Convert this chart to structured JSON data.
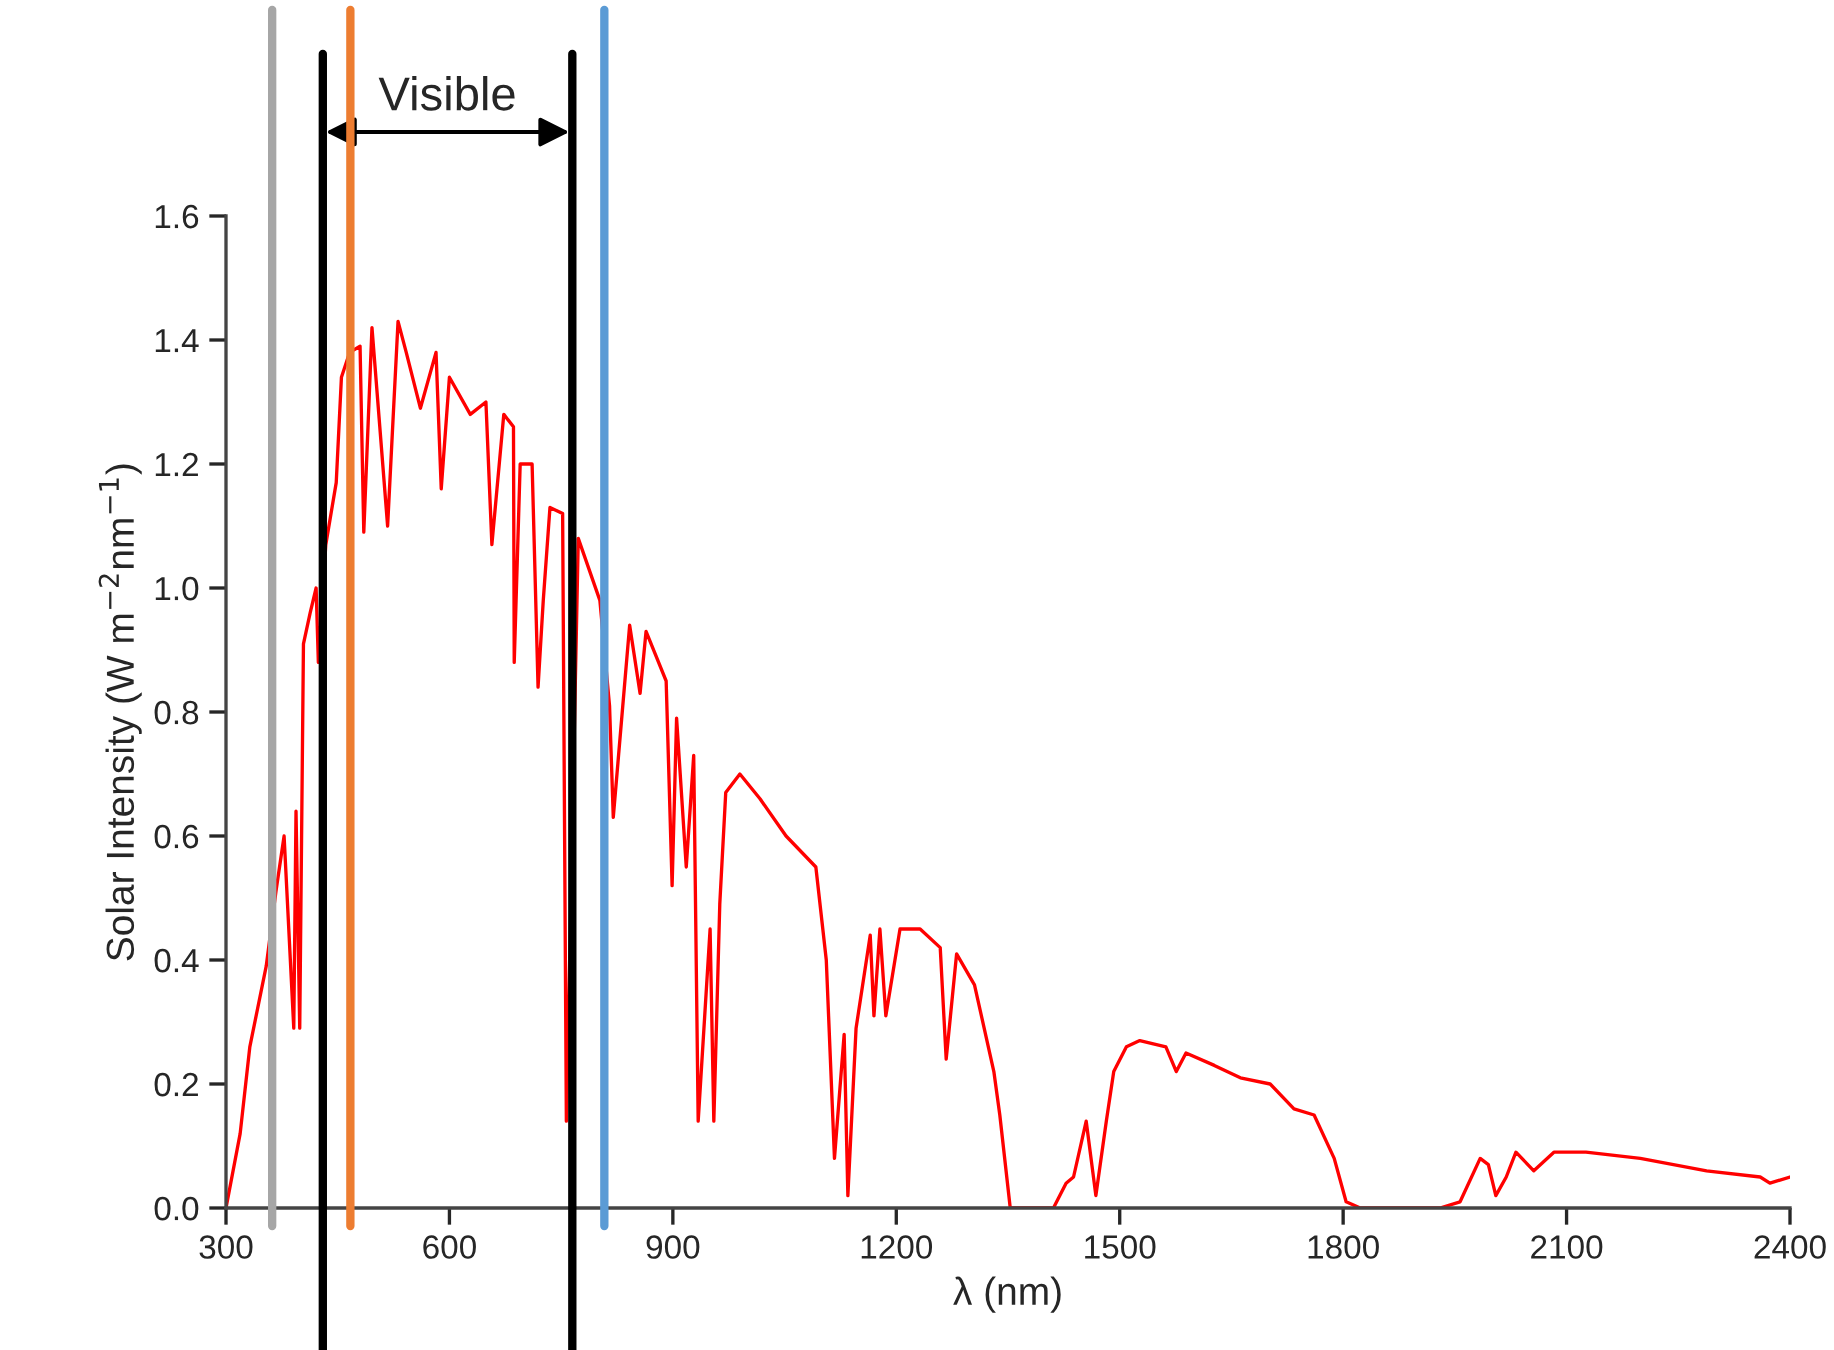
{
  "chart_data": {
    "type": "line",
    "xlabel": "λ (nm)",
    "ylabel": "Solar Intensity (W m$^{−2}$nm$^{−1}$)",
    "xlim": [
      300,
      2400
    ],
    "xticks": [
      300,
      600,
      900,
      1200,
      1500,
      1800,
      2100,
      2400
    ],
    "ylim": [
      0,
      1.6
    ],
    "yticks": [
      {
        "value": 0,
        "label": "0.0"
      },
      {
        "value": 0.2,
        "label": "0.2"
      },
      {
        "value": 0.4,
        "label": "0.4"
      },
      {
        "value": 0.6,
        "label": "0.6"
      },
      {
        "value": 0.8,
        "label": "0.8"
      },
      {
        "value": 1.0,
        "label": "1.0"
      },
      {
        "value": 1.2,
        "label": "1.2"
      },
      {
        "value": 1.4,
        "label": "1.4"
      },
      {
        "value": 1.6,
        "label": "1.6"
      }
    ],
    "grid": false,
    "marker": "none",
    "line_style": "solid",
    "series": [
      {
        "color": "#ff0000",
        "x": [
          300,
          319,
          332,
          354,
          367,
          378,
          391,
          394,
          399,
          404,
          413,
          421,
          424,
          434,
          448,
          455,
          466,
          480,
          485,
          496,
          517,
          531,
          542,
          561,
          582,
          589,
          600,
          628,
          649,
          657,
          673,
          686,
          687,
          695,
          711,
          719,
          726,
          735,
          752,
          757,
          773,
          802,
          815,
          820,
          842,
          856,
          864,
          891,
          899,
          905,
          918,
          928,
          934,
          950,
          955,
          963,
          971,
          990,
          1017,
          1052,
          1092,
          1106,
          1117,
          1130,
          1135,
          1146,
          1165,
          1170,
          1178,
          1186,
          1205,
          1232,
          1259,
          1267,
          1281,
          1305,
          1331,
          1339,
          1353,
          1411,
          1428,
          1438,
          1455,
          1468,
          1482,
          1492,
          1509,
          1527,
          1562,
          1576,
          1589,
          1627,
          1662,
          1702,
          1734,
          1761,
          1788,
          1804,
          1823,
          1930,
          1957,
          1984,
          1995,
          2005,
          2019,
          2032,
          2056,
          2083,
          2126,
          2199,
          2288,
          2360,
          2373,
          2400
        ],
        "values": [
          0.0,
          0.12,
          0.26,
          0.39,
          0.51,
          0.6,
          0.29,
          0.64,
          0.29,
          0.91,
          0.96,
          1.0,
          0.88,
          1.07,
          1.17,
          1.34,
          1.38,
          1.39,
          1.09,
          1.42,
          1.1,
          1.43,
          1.38,
          1.29,
          1.38,
          1.16,
          1.34,
          1.28,
          1.3,
          1.07,
          1.28,
          1.26,
          0.88,
          1.2,
          1.2,
          0.84,
          0.98,
          1.13,
          1.12,
          0.14,
          1.08,
          0.98,
          0.81,
          0.63,
          0.94,
          0.83,
          0.93,
          0.85,
          0.52,
          0.79,
          0.55,
          0.73,
          0.14,
          0.45,
          0.14,
          0.49,
          0.67,
          0.7,
          0.66,
          0.6,
          0.55,
          0.4,
          0.08,
          0.28,
          0.02,
          0.29,
          0.44,
          0.31,
          0.45,
          0.31,
          0.45,
          0.45,
          0.42,
          0.24,
          0.41,
          0.36,
          0.22,
          0.15,
          0.0,
          0.0,
          0.04,
          0.05,
          0.14,
          0.02,
          0.14,
          0.22,
          0.26,
          0.27,
          0.26,
          0.22,
          0.25,
          0.23,
          0.21,
          0.2,
          0.16,
          0.15,
          0.08,
          0.01,
          0.0,
          0.0,
          0.01,
          0.08,
          0.07,
          0.02,
          0.05,
          0.09,
          0.06,
          0.09,
          0.09,
          0.08,
          0.06,
          0.05,
          0.04,
          0.05
        ]
      }
    ],
    "ref_lines": [
      {
        "axis": "x",
        "value": 362,
        "color": "#a6a6a6"
      },
      {
        "axis": "x",
        "value": 430,
        "color": "#000000"
      },
      {
        "axis": "x",
        "value": 467,
        "color": "#ed7d31"
      },
      {
        "axis": "x",
        "value": 765,
        "color": "#000000"
      },
      {
        "axis": "x",
        "value": 808,
        "color": "#5b9bd5"
      }
    ],
    "annotations": [
      "Visible"
    ]
  }
}
